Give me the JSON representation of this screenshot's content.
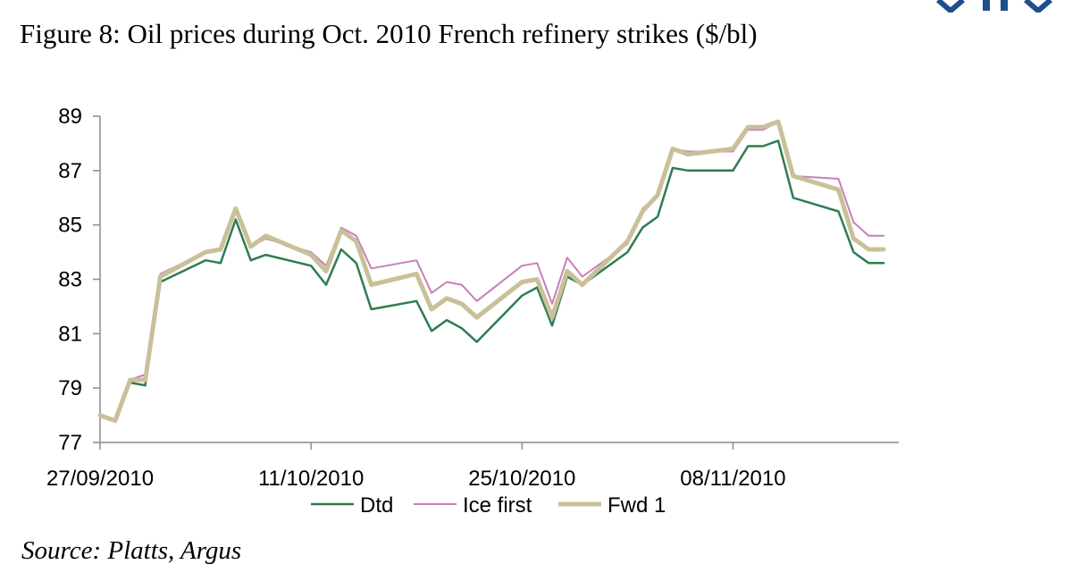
{
  "figure": {
    "title": "Figure 8: Oil prices during Oct. 2010 French refinery strikes ($/bl)",
    "source": "Source: Platts, Argus"
  },
  "logo": {
    "color": "#1f4e8c",
    "icon": "brand-logo-icon"
  },
  "chart_data": {
    "type": "line",
    "title": "",
    "xlabel": "",
    "ylabel": "",
    "ylim": [
      77,
      89
    ],
    "yticks": [
      77,
      79,
      81,
      83,
      85,
      87,
      89
    ],
    "xlim": [
      "2010-09-27",
      "2010-11-19"
    ],
    "xtick_labels": [
      {
        "date": "2010-09-27",
        "label": "27/09/2010"
      },
      {
        "date": "2010-10-11",
        "label": "11/10/2010"
      },
      {
        "date": "2010-10-25",
        "label": "25/10/2010"
      },
      {
        "date": "2010-11-08",
        "label": "08/11/2010"
      }
    ],
    "grid": false,
    "legend_position": "bottom",
    "x": [
      "2010-09-27",
      "2010-09-28",
      "2010-09-29",
      "2010-09-30",
      "2010-10-01",
      "2010-10-04",
      "2010-10-05",
      "2010-10-06",
      "2010-10-07",
      "2010-10-08",
      "2010-10-11",
      "2010-10-12",
      "2010-10-13",
      "2010-10-14",
      "2010-10-15",
      "2010-10-18",
      "2010-10-19",
      "2010-10-20",
      "2010-10-21",
      "2010-10-22",
      "2010-10-25",
      "2010-10-26",
      "2010-10-27",
      "2010-10-28",
      "2010-10-29",
      "2010-11-01",
      "2010-11-02",
      "2010-11-03",
      "2010-11-04",
      "2010-11-05",
      "2010-11-08",
      "2010-11-09",
      "2010-11-10",
      "2010-11-11",
      "2010-11-12",
      "2010-11-15",
      "2010-11-16",
      "2010-11-17",
      "2010-11-18"
    ],
    "series": [
      {
        "name": "Dtd",
        "color": "#2e7d4f",
        "width": 2.5,
        "values": [
          78.0,
          77.8,
          79.2,
          79.1,
          82.9,
          83.7,
          83.6,
          85.2,
          83.7,
          83.9,
          83.5,
          82.8,
          84.1,
          83.6,
          81.9,
          82.2,
          81.1,
          81.5,
          81.2,
          80.7,
          82.4,
          82.7,
          81.3,
          83.1,
          82.8,
          84.0,
          84.9,
          85.3,
          87.1,
          87.0,
          87.0,
          87.9,
          87.9,
          88.1,
          86.0,
          85.5,
          84.0,
          83.6,
          83.6
        ]
      },
      {
        "name": "Ice first",
        "color": "#c77fb8",
        "width": 2,
        "values": [
          78.0,
          77.8,
          79.3,
          79.5,
          83.2,
          84.0,
          84.1,
          85.6,
          84.2,
          84.5,
          84.0,
          83.5,
          84.9,
          84.6,
          83.4,
          83.7,
          82.5,
          82.9,
          82.8,
          82.2,
          83.5,
          83.6,
          82.1,
          83.8,
          83.1,
          84.3,
          85.6,
          86.1,
          87.8,
          87.7,
          87.7,
          88.5,
          88.5,
          88.8,
          86.8,
          86.7,
          85.1,
          84.6,
          84.6
        ]
      },
      {
        "name": "Fwd 1",
        "color": "#c9c09a",
        "width": 5,
        "values": [
          78.0,
          77.8,
          79.3,
          79.3,
          83.1,
          84.0,
          84.1,
          85.6,
          84.2,
          84.6,
          83.9,
          83.3,
          84.8,
          84.4,
          82.8,
          83.2,
          81.9,
          82.3,
          82.1,
          81.6,
          82.9,
          83.0,
          81.6,
          83.3,
          82.8,
          84.4,
          85.5,
          86.1,
          87.8,
          87.6,
          87.8,
          88.6,
          88.6,
          88.8,
          86.8,
          86.3,
          84.5,
          84.1,
          84.1
        ]
      }
    ]
  }
}
